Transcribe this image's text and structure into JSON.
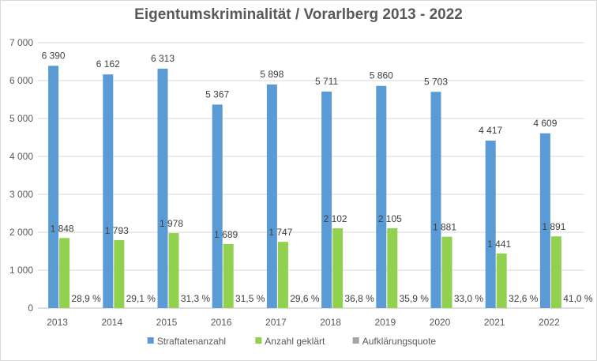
{
  "chart_data": {
    "type": "bar",
    "title": "Eigentumskriminalität / Vorarlberg 2013 - 2022",
    "categories": [
      "2013",
      "2014",
      "2015",
      "2016",
      "2017",
      "2018",
      "2019",
      "2020",
      "2021",
      "2022"
    ],
    "series": [
      {
        "name": "Straftatenanzahl",
        "color": "#5b9bd5",
        "values": [
          6390,
          6162,
          6313,
          5367,
          5898,
          5711,
          5860,
          5703,
          4417,
          4609
        ],
        "labels": [
          "6 390",
          "6 162",
          "6 313",
          "5 367",
          "5 898",
          "5 711",
          "5 860",
          "5 703",
          "4 417",
          "4 609"
        ]
      },
      {
        "name": "Anzahl geklärt",
        "color": "#92d050",
        "values": [
          1848,
          1793,
          1978,
          1689,
          1747,
          2102,
          2105,
          1881,
          1441,
          1891
        ],
        "labels": [
          "1 848",
          "1 793",
          "1 978",
          "1 689",
          "1 747",
          "2 102",
          "2 105",
          "1 881",
          "1 441",
          "1 891"
        ]
      },
      {
        "name": "Aufklärungsquote",
        "color": "#a5a5a5",
        "values": [
          28.9,
          29.1,
          31.3,
          31.5,
          29.6,
          36.8,
          35.9,
          33.0,
          32.6,
          41.0
        ],
        "labels": [
          "28,9 %",
          "29,1 %",
          "31,3 %",
          "31,5 %",
          "29,6 %",
          "36,8 %",
          "35,9 %",
          "33,0 %",
          "32,6 %",
          "41,0 %"
        ]
      }
    ],
    "ylim": [
      0,
      7000
    ],
    "yticks": [
      0,
      1000,
      2000,
      3000,
      4000,
      5000,
      6000,
      7000
    ],
    "ytick_labels": [
      "0",
      "1 000",
      "2 000",
      "3 000",
      "4 000",
      "5 000",
      "6 000",
      "7 000"
    ],
    "grid": true,
    "legend": "bottom"
  }
}
